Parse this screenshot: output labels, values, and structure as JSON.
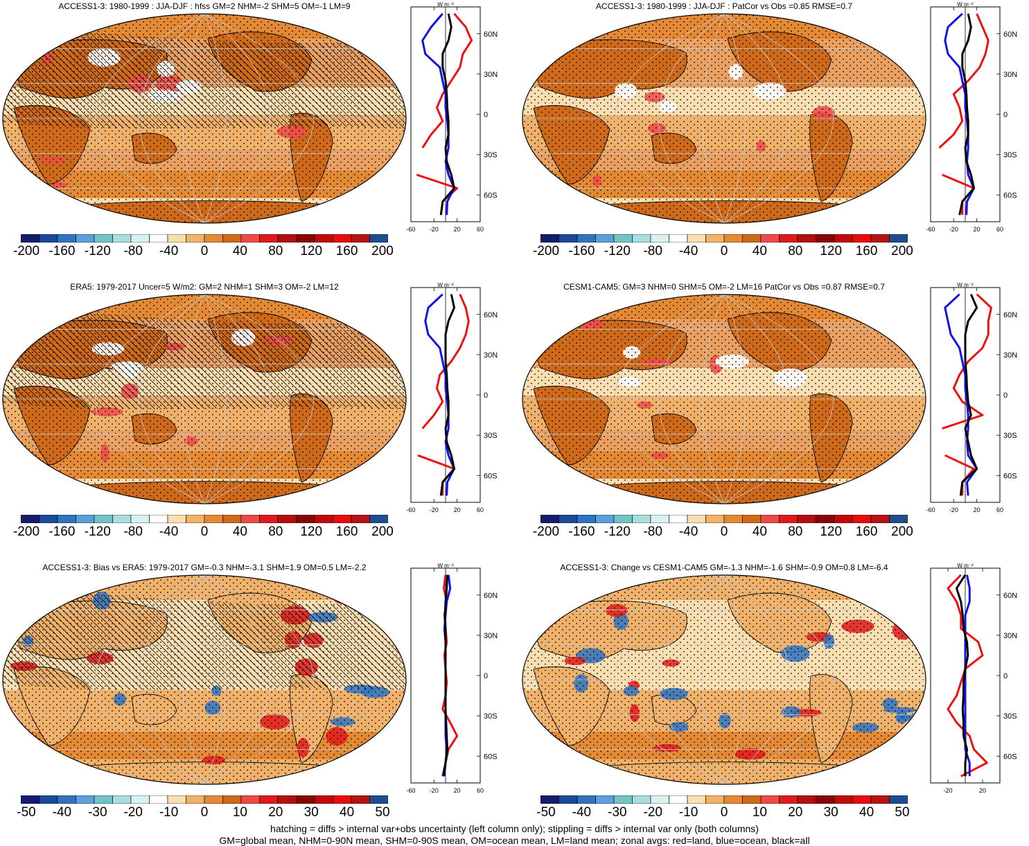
{
  "footer": {
    "line1": "hatching = diffs > internal var+obs uncertainty (left column only); stippling = diffs > internal var only (both columns)",
    "line2": "GM=global mean, NHM=0-90N mean, SHM=0-90S mean, OM=ocean mean, LM=land mean; zonal avgs: red=land, blue=ocean, black=all"
  },
  "chart_data": [
    {
      "type": "heatmap",
      "title": "ACCESS1-3: 1980-1999 : JJA-DJF : hfss GM=2 NHM=-2 SHM=5 OM=-1 LM=9",
      "colorbar_ticks": [
        "-200",
        "-160",
        "-120",
        "-80",
        "-40",
        "0",
        "40",
        "80",
        "120",
        "160",
        "200"
      ],
      "colorbar_range": [
        -200,
        200
      ],
      "hatching": true,
      "stippling": true,
      "zonal": {
        "unit": "W m⁻²",
        "xticks": [
          "-60",
          "-20",
          "20",
          "60"
        ],
        "xlim": [
          -60,
          60
        ],
        "yticks": [
          "60N",
          "30N",
          "0",
          "30S",
          "60S"
        ],
        "lat": [
          75,
          65,
          55,
          45,
          35,
          25,
          15,
          5,
          -5,
          -15,
          -25,
          -35,
          -45,
          -55,
          -65,
          -75
        ],
        "land": [
          15,
          35,
          45,
          30,
          25,
          10,
          -5,
          -15,
          -5,
          -25,
          -40,
          null,
          -50,
          20,
          -5,
          -8
        ],
        "ocean": [
          -5,
          -25,
          -40,
          -35,
          -10,
          -5,
          0,
          0,
          3,
          5,
          5,
          0,
          5,
          15,
          3,
          2
        ],
        "all": [
          5,
          10,
          5,
          -5,
          -5,
          0,
          2,
          3,
          5,
          5,
          0,
          2,
          10,
          15,
          -5,
          -8
        ]
      }
    },
    {
      "type": "heatmap",
      "title": "ACCESS1-3: 1980-1999 : JJA-DJF : PatCor vs Obs =0.85 RMSE=0.7",
      "colorbar_ticks": [
        "-200",
        "-160",
        "-120",
        "-80",
        "-40",
        "0",
        "40",
        "80",
        "120",
        "160",
        "200"
      ],
      "colorbar_range": [
        -200,
        200
      ],
      "hatching": false,
      "stippling": true,
      "zonal": {
        "unit": "W m⁻²",
        "xticks": [
          "-60",
          "-20",
          "20",
          "60"
        ],
        "xlim": [
          -60,
          60
        ],
        "yticks": [
          "60N",
          "30N",
          "0",
          "30S",
          "60S"
        ],
        "lat": [
          75,
          65,
          55,
          45,
          35,
          25,
          15,
          5,
          -5,
          -15,
          -25,
          -35,
          -45,
          -55,
          -65,
          -75
        ],
        "land": [
          20,
          30,
          40,
          35,
          25,
          5,
          -20,
          -10,
          -5,
          -20,
          -45,
          null,
          -40,
          15,
          -5,
          -5
        ],
        "ocean": [
          -5,
          -30,
          -35,
          -30,
          -10,
          -5,
          0,
          0,
          3,
          5,
          5,
          3,
          5,
          15,
          3,
          2
        ],
        "all": [
          5,
          10,
          5,
          -5,
          -5,
          0,
          2,
          3,
          5,
          5,
          0,
          2,
          10,
          15,
          -5,
          -10
        ]
      }
    },
    {
      "type": "heatmap",
      "title": "ERA5: 1979-2017 Uncer=5 W/m2: GM=2 NHM=1 SHM=3 OM=-2 LM=12",
      "colorbar_ticks": [
        "-200",
        "-160",
        "-120",
        "-80",
        "-40",
        "0",
        "40",
        "80",
        "120",
        "160",
        "200"
      ],
      "colorbar_range": [
        -200,
        200
      ],
      "hatching": true,
      "stippling": true,
      "zonal": {
        "unit": "W m⁻²",
        "xticks": [
          "-60",
          "-20",
          "20",
          "60"
        ],
        "xlim": [
          -60,
          60
        ],
        "yticks": [
          "60N",
          "30N",
          "0",
          "30S",
          "60S"
        ],
        "lat": [
          75,
          65,
          55,
          45,
          35,
          25,
          15,
          5,
          -5,
          -15,
          -25,
          -35,
          -45,
          -55,
          -65,
          -75
        ],
        "land": [
          25,
          35,
          40,
          35,
          25,
          10,
          -10,
          -15,
          -5,
          -20,
          -40,
          null,
          -48,
          15,
          -5,
          -5
        ],
        "ocean": [
          -5,
          -30,
          -35,
          -30,
          -10,
          -5,
          0,
          0,
          3,
          5,
          5,
          0,
          5,
          15,
          3,
          2
        ],
        "all": [
          10,
          15,
          5,
          0,
          0,
          0,
          2,
          3,
          5,
          5,
          0,
          2,
          10,
          15,
          -5,
          -8
        ]
      }
    },
    {
      "type": "heatmap",
      "title": "CESM1-CAM5: GM=3 NHM=0 SHM=5 OM=-2 LM=16 PatCor vs Obs =0.87 RMSE=0.7",
      "colorbar_ticks": [
        "-200",
        "-160",
        "-120",
        "-80",
        "-40",
        "0",
        "40",
        "80",
        "120",
        "160",
        "200"
      ],
      "colorbar_range": [
        -200,
        200
      ],
      "hatching": false,
      "stippling": true,
      "zonal": {
        "unit": "W m⁻²",
        "xticks": [
          "-60",
          "-20",
          "20",
          "60"
        ],
        "xlim": [
          -60,
          60
        ],
        "yticks": [
          "60N",
          "30N",
          "0",
          "30S",
          "60S"
        ],
        "lat": [
          75,
          65,
          55,
          45,
          35,
          25,
          15,
          5,
          -5,
          -15,
          -25,
          -35,
          -45,
          -55,
          -65,
          -75
        ],
        "land": [
          20,
          45,
          40,
          40,
          30,
          5,
          -10,
          -20,
          -5,
          30,
          -40,
          null,
          -35,
          15,
          -5,
          -5
        ],
        "ocean": [
          -10,
          -35,
          -30,
          -25,
          -10,
          -5,
          0,
          0,
          3,
          5,
          5,
          3,
          5,
          20,
          3,
          5
        ],
        "all": [
          10,
          20,
          5,
          0,
          0,
          0,
          2,
          3,
          5,
          10,
          0,
          5,
          10,
          20,
          -5,
          -8
        ]
      }
    },
    {
      "type": "heatmap",
      "title": "ACCESS1-3: Bias vs ERA5: 1979-2017 GM=-0.3 NHM=-3.1 SHM=1.9 OM=0.5 LM=-2.2",
      "colorbar_ticks": [
        "-50",
        "-40",
        "-30",
        "-20",
        "-10",
        "0",
        "10",
        "20",
        "30",
        "40",
        "50"
      ],
      "colorbar_range": [
        -50,
        50
      ],
      "hatching": true,
      "stippling": true,
      "zonal": {
        "unit": "W m⁻²",
        "xticks": [
          "-60",
          "-20",
          "20",
          "60"
        ],
        "xlim": [
          -60,
          60
        ],
        "yticks": [
          "60N",
          "30N",
          "0",
          "30S",
          "60S"
        ],
        "lat": [
          75,
          65,
          55,
          45,
          35,
          25,
          15,
          5,
          -5,
          -15,
          -25,
          -35,
          -45,
          -55,
          -65,
          -75
        ],
        "land": [
          0,
          -3,
          2,
          -2,
          0,
          2,
          -2,
          0,
          2,
          0,
          -5,
          8,
          20,
          5,
          0,
          -2
        ],
        "ocean": [
          5,
          8,
          2,
          0,
          -2,
          0,
          0,
          0,
          0,
          0,
          0,
          0,
          0,
          2,
          0,
          -5
        ],
        "all": [
          3,
          2,
          0,
          -1,
          0,
          0,
          0,
          0,
          0,
          0,
          0,
          1,
          2,
          3,
          0,
          -3
        ]
      }
    },
    {
      "type": "heatmap",
      "title": "ACCESS1-3: Change vs CESM1-CAM5 GM=-1.3 NHM=-1.6 SHM=-0.9 OM=0.8 LM=-6.4",
      "colorbar_ticks": [
        "-50",
        "-40",
        "-30",
        "-20",
        "-10",
        "0",
        "10",
        "20",
        "30",
        "40",
        "50"
      ],
      "colorbar_range": [
        -50,
        50
      ],
      "hatching": false,
      "stippling": true,
      "zonal": {
        "unit": "W m⁻²",
        "xticks": [
          "-20",
          "20"
        ],
        "xlim": [
          -40,
          40
        ],
        "yticks": [
          "60N",
          "30N",
          "0",
          "30S",
          "60S"
        ],
        "lat": [
          75,
          65,
          55,
          45,
          35,
          25,
          15,
          5,
          -5,
          -15,
          -25,
          -35,
          -45,
          -55,
          -65,
          -75
        ],
        "land": [
          -5,
          -20,
          -10,
          -5,
          -5,
          15,
          20,
          0,
          -5,
          -10,
          -20,
          -10,
          5,
          10,
          25,
          -5
        ],
        "ocean": [
          2,
          5,
          5,
          0,
          0,
          0,
          0,
          0,
          0,
          0,
          0,
          0,
          0,
          0,
          5,
          5
        ],
        "all": [
          0,
          -10,
          -5,
          -3,
          -2,
          2,
          3,
          0,
          -2,
          -2,
          -3,
          -2,
          -2,
          2,
          0,
          0
        ]
      }
    }
  ]
}
